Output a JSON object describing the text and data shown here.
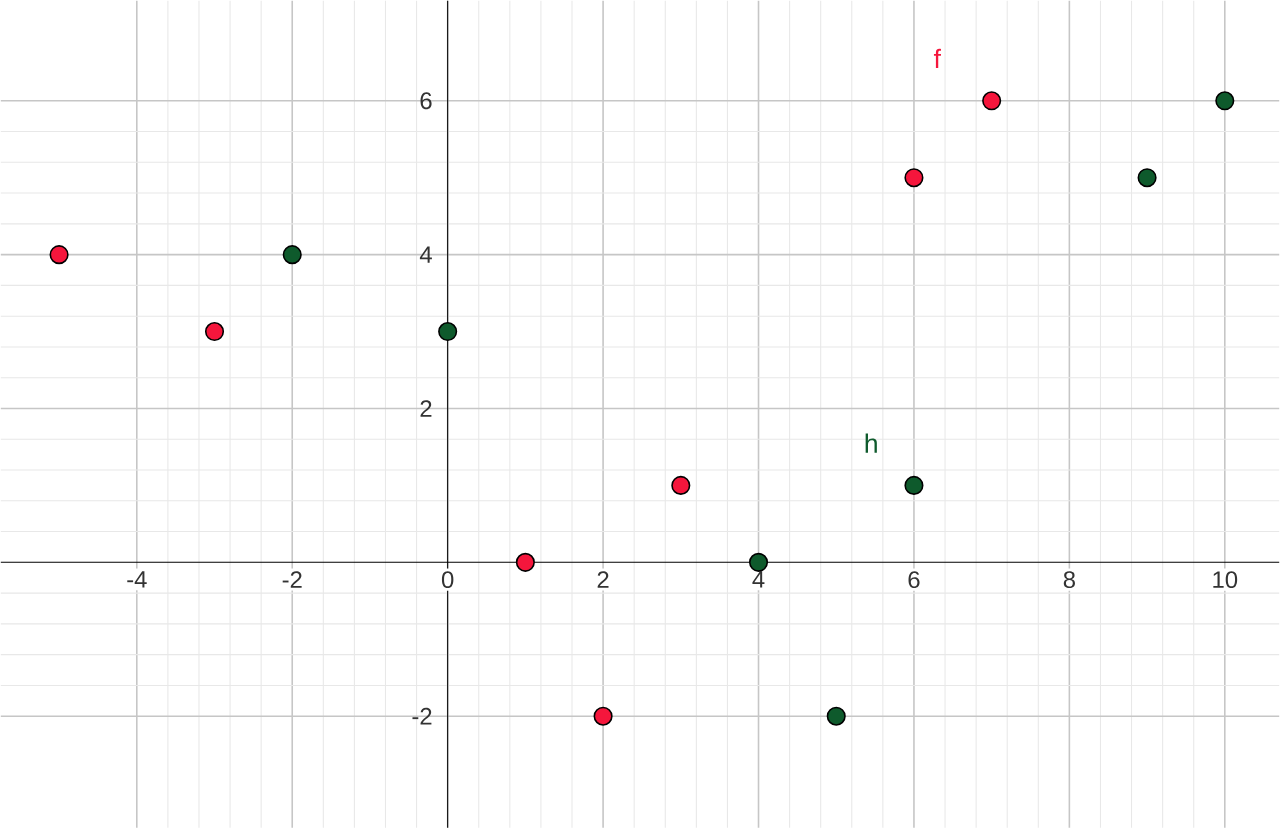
{
  "chart_data": {
    "type": "scatter",
    "xlim": [
      -5.75,
      10.7
    ],
    "ylim": [
      -3.45,
      7.3
    ],
    "xticks": [
      -4,
      -2,
      0,
      2,
      4,
      6,
      8,
      10
    ],
    "yticks": [
      -2,
      {
        "value": 0,
        "label": null
      },
      2,
      4,
      6
    ],
    "grid": true,
    "legend": false,
    "marker": "circle",
    "series": [
      {
        "name": "f",
        "color": "#f5163c",
        "x": [
          -5,
          -3,
          1,
          2,
          3,
          6,
          7
        ],
        "values": [
          4,
          3,
          0,
          -2,
          1,
          5,
          6
        ]
      },
      {
        "name": "h",
        "color": "#0e5a2c",
        "x": [
          -2,
          0,
          4,
          5,
          6,
          9,
          10
        ],
        "values": [
          4,
          3,
          0,
          -2,
          1,
          5,
          6
        ]
      }
    ]
  }
}
